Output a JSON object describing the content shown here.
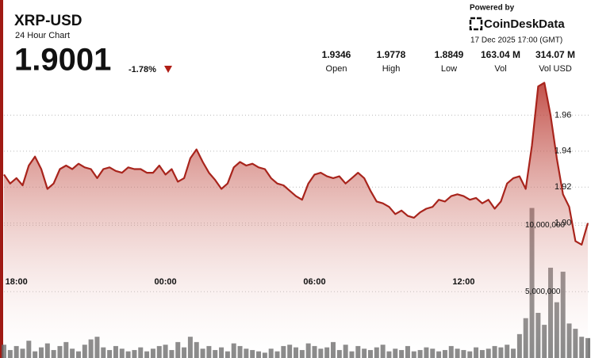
{
  "header": {
    "symbol": "XRP-USD",
    "subtitle": "24 Hour Chart",
    "price": "1.9001",
    "change": "-1.78%",
    "stats": [
      {
        "value": "1.9346",
        "label": "Open"
      },
      {
        "value": "1.9778",
        "label": "High"
      },
      {
        "value": "1.8849",
        "label": "Low"
      },
      {
        "value": "163.04 M",
        "label": "Vol"
      },
      {
        "value": "314.07 M",
        "label": "Vol USD"
      }
    ],
    "powered_by": "Powered by",
    "brand": "CoinDeskData",
    "timestamp": "17 Dec 2025 17:00 (GMT)"
  },
  "chart_data": {
    "type": "line",
    "categories": [
      null,
      null,
      "18:00",
      null,
      null,
      null,
      null,
      null,
      null,
      null,
      null,
      null,
      null,
      null,
      null,
      null,
      null,
      null,
      null,
      null,
      null,
      null,
      null,
      null,
      null,
      null,
      "00:00",
      null,
      null,
      null,
      null,
      null,
      null,
      null,
      null,
      null,
      null,
      null,
      null,
      null,
      null,
      null,
      null,
      null,
      null,
      null,
      null,
      null,
      null,
      null,
      "06:00",
      null,
      null,
      null,
      null,
      null,
      null,
      null,
      null,
      null,
      null,
      null,
      null,
      null,
      null,
      null,
      null,
      null,
      null,
      null,
      null,
      null,
      null,
      null,
      "12:00",
      null,
      null,
      null,
      null,
      null,
      null,
      null,
      null,
      null,
      null,
      null,
      null,
      null,
      null,
      null,
      null,
      null,
      null,
      null,
      null
    ],
    "series": [
      {
        "type": "line",
        "color": "#a8241c",
        "values": [
          1.927,
          1.922,
          1.925,
          1.921,
          1.932,
          1.937,
          1.93,
          1.919,
          1.922,
          1.93,
          1.932,
          1.93,
          1.933,
          1.931,
          1.93,
          1.925,
          1.93,
          1.931,
          1.929,
          1.928,
          1.931,
          1.93,
          1.93,
          1.928,
          1.928,
          1.932,
          1.927,
          1.93,
          1.923,
          1.925,
          1.936,
          1.941,
          1.934,
          1.928,
          1.924,
          1.919,
          1.922,
          1.931,
          1.934,
          1.932,
          1.933,
          1.931,
          1.93,
          1.925,
          1.922,
          1.921,
          1.918,
          1.915,
          1.913,
          1.922,
          1.927,
          1.928,
          1.926,
          1.925,
          1.926,
          1.922,
          1.925,
          1.928,
          1.925,
          1.918,
          1.912,
          1.911,
          1.909,
          1.905,
          1.907,
          1.904,
          1.903,
          1.906,
          1.908,
          1.909,
          1.913,
          1.912,
          1.915,
          1.916,
          1.915,
          1.913,
          1.914,
          1.911,
          1.913,
          1.908,
          1.912,
          1.922,
          1.925,
          1.926,
          1.919,
          1.943,
          1.976,
          1.978,
          1.96,
          1.936,
          1.916,
          1.909,
          1.89,
          1.888,
          1.9
        ]
      },
      {
        "type": "bar",
        "axis": "y2",
        "color": "#666666",
        "values": [
          1000000,
          600000,
          900000,
          700000,
          1300000,
          500000,
          800000,
          1100000,
          600000,
          900000,
          1200000,
          700000,
          500000,
          1000000,
          1400000,
          1600000,
          800000,
          600000,
          900000,
          700000,
          500000,
          600000,
          800000,
          500000,
          700000,
          900000,
          1000000,
          600000,
          1200000,
          800000,
          1600000,
          1200000,
          700000,
          900000,
          600000,
          800000,
          500000,
          1100000,
          900000,
          700000,
          600000,
          500000,
          400000,
          700000,
          500000,
          900000,
          1000000,
          800000,
          600000,
          1100000,
          900000,
          700000,
          800000,
          1200000,
          600000,
          1000000,
          500000,
          900000,
          700000,
          600000,
          800000,
          1000000,
          500000,
          700000,
          600000,
          900000,
          500000,
          600000,
          800000,
          700000,
          500000,
          600000,
          900000,
          700000,
          600000,
          500000,
          800000,
          600000,
          700000,
          900000,
          800000,
          1000000,
          700000,
          1800000,
          3000000,
          11300000,
          3400000,
          2500000,
          6800000,
          4200000,
          6500000,
          2600000,
          2200000,
          1600000,
          1500000
        ]
      }
    ],
    "ylim": [
      1.825,
      1.98
    ],
    "yticks": [
      1.96,
      1.94,
      1.92,
      {
        "value": 1.9,
        "label": "1.90"
      }
    ],
    "y2lim": [
      0,
      21000000
    ],
    "y2ticks": [
      {
        "value": 10000000,
        "label": "10,000,000"
      },
      {
        "value": 5000000,
        "label": "5,000,000"
      }
    ],
    "grid": true
  }
}
